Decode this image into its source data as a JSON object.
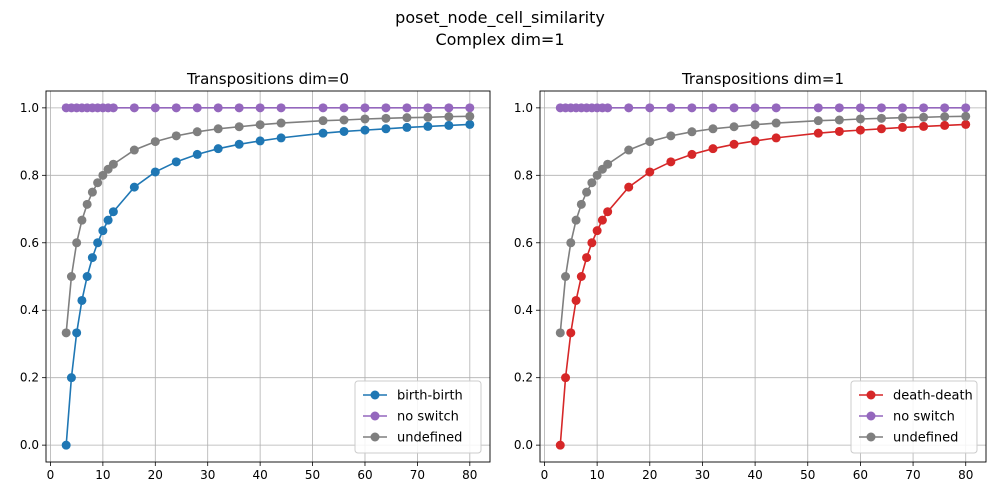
{
  "figure": {
    "title_line1": "poset_node_cell_similarity",
    "title_line2": "Complex dim=1"
  },
  "chart_data": [
    {
      "type": "line",
      "title": "Transpositions dim=0",
      "xlabel": "",
      "ylabel": "",
      "xlim": [
        -0.85,
        83.85
      ],
      "ylim": [
        -0.05,
        1.05
      ],
      "xticks": [
        0,
        10,
        20,
        30,
        40,
        50,
        60,
        70,
        80
      ],
      "yticks": [
        0.0,
        0.2,
        0.4,
        0.6,
        0.8,
        1.0
      ],
      "grid": true,
      "legend_position": "lower-right",
      "series": [
        {
          "name": "birth-birth",
          "color": "#1f77b4",
          "x": [
            3,
            4,
            5,
            6,
            7,
            8,
            9,
            10,
            11,
            12,
            16,
            20,
            24,
            28,
            32,
            36,
            40,
            44,
            52,
            56,
            60,
            64,
            68,
            72,
            76,
            80
          ],
          "y": [
            0.0,
            0.2,
            0.333,
            0.429,
            0.5,
            0.556,
            0.6,
            0.636,
            0.667,
            0.692,
            0.765,
            0.81,
            0.84,
            0.862,
            0.879,
            0.892,
            0.902,
            0.911,
            0.925,
            0.93,
            0.934,
            0.938,
            0.942,
            0.945,
            0.948,
            0.951
          ]
        },
        {
          "name": "no switch",
          "color": "#9467bd",
          "x": [
            3,
            4,
            5,
            6,
            7,
            8,
            9,
            10,
            11,
            12,
            16,
            20,
            24,
            28,
            32,
            36,
            40,
            44,
            52,
            56,
            60,
            64,
            68,
            72,
            76,
            80
          ],
          "y": [
            1,
            1,
            1,
            1,
            1,
            1,
            1,
            1,
            1,
            1,
            1,
            1,
            1,
            1,
            1,
            1,
            1,
            1,
            1,
            1,
            1,
            1,
            1,
            1,
            1,
            1
          ]
        },
        {
          "name": "undefined",
          "color": "#7f7f7f",
          "x": [
            3,
            4,
            5,
            6,
            7,
            8,
            9,
            10,
            11,
            12,
            16,
            20,
            24,
            28,
            32,
            36,
            40,
            44,
            52,
            56,
            60,
            64,
            68,
            72,
            76,
            80
          ],
          "y": [
            0.333,
            0.5,
            0.6,
            0.667,
            0.714,
            0.75,
            0.778,
            0.8,
            0.818,
            0.833,
            0.875,
            0.9,
            0.917,
            0.929,
            0.938,
            0.944,
            0.95,
            0.955,
            0.962,
            0.964,
            0.967,
            0.969,
            0.971,
            0.972,
            0.974,
            0.975
          ]
        }
      ]
    },
    {
      "type": "line",
      "title": "Transpositions dim=1",
      "xlabel": "",
      "ylabel": "",
      "xlim": [
        -0.85,
        83.85
      ],
      "ylim": [
        -0.05,
        1.05
      ],
      "xticks": [
        0,
        10,
        20,
        30,
        40,
        50,
        60,
        70,
        80
      ],
      "yticks": [
        0.0,
        0.2,
        0.4,
        0.6,
        0.8,
        1.0
      ],
      "grid": true,
      "legend_position": "lower-right",
      "series": [
        {
          "name": "death-death",
          "color": "#d62728",
          "x": [
            3,
            4,
            5,
            6,
            7,
            8,
            9,
            10,
            11,
            12,
            16,
            20,
            24,
            28,
            32,
            36,
            40,
            44,
            52,
            56,
            60,
            64,
            68,
            72,
            76,
            80
          ],
          "y": [
            0.0,
            0.2,
            0.333,
            0.429,
            0.5,
            0.556,
            0.6,
            0.636,
            0.667,
            0.692,
            0.765,
            0.81,
            0.84,
            0.862,
            0.879,
            0.892,
            0.902,
            0.911,
            0.925,
            0.93,
            0.934,
            0.938,
            0.942,
            0.945,
            0.948,
            0.951
          ]
        },
        {
          "name": "no switch",
          "color": "#9467bd",
          "x": [
            3,
            4,
            5,
            6,
            7,
            8,
            9,
            10,
            11,
            12,
            16,
            20,
            24,
            28,
            32,
            36,
            40,
            44,
            52,
            56,
            60,
            64,
            68,
            72,
            76,
            80
          ],
          "y": [
            1,
            1,
            1,
            1,
            1,
            1,
            1,
            1,
            1,
            1,
            1,
            1,
            1,
            1,
            1,
            1,
            1,
            1,
            1,
            1,
            1,
            1,
            1,
            1,
            1,
            1
          ]
        },
        {
          "name": "undefined",
          "color": "#7f7f7f",
          "x": [
            3,
            4,
            5,
            6,
            7,
            8,
            9,
            10,
            11,
            12,
            16,
            20,
            24,
            28,
            32,
            36,
            40,
            44,
            52,
            56,
            60,
            64,
            68,
            72,
            76,
            80
          ],
          "y": [
            0.333,
            0.5,
            0.6,
            0.667,
            0.714,
            0.75,
            0.778,
            0.8,
            0.818,
            0.833,
            0.875,
            0.9,
            0.917,
            0.929,
            0.938,
            0.944,
            0.95,
            0.955,
            0.962,
            0.964,
            0.967,
            0.969,
            0.971,
            0.972,
            0.974,
            0.975
          ]
        }
      ]
    }
  ]
}
